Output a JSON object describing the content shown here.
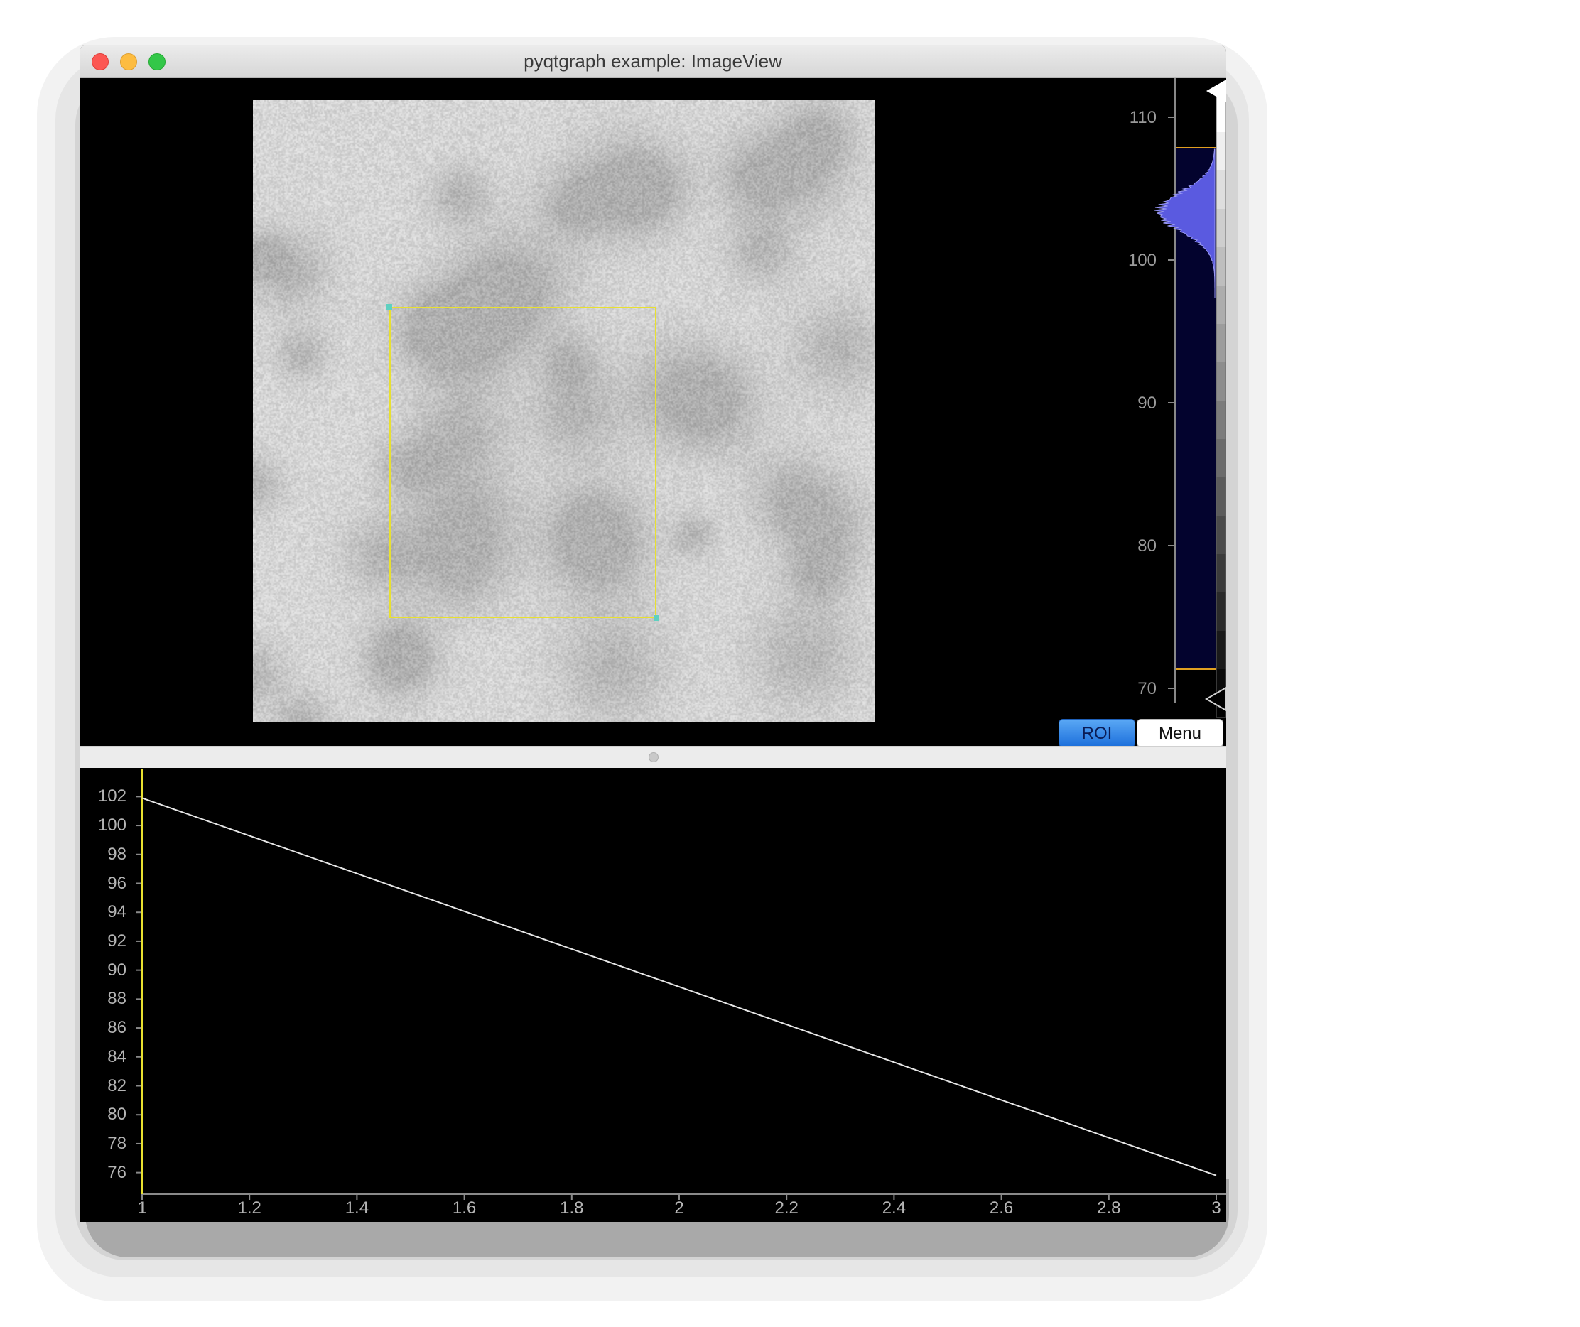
{
  "window": {
    "title": "pyqtgraph example: ImageView",
    "controls": [
      "close",
      "minimize",
      "zoom"
    ]
  },
  "image_view": {
    "image": "noisy-grayscale-image",
    "roi_color": "#e8e030"
  },
  "histogram": {
    "axis_ticks": [
      "110",
      "100",
      "90",
      "80",
      "70"
    ],
    "fill_color": "#5a5ae0",
    "background_color": "#03032e",
    "level_line_color": "#e0a020"
  },
  "buttons": {
    "roi": {
      "label": "ROI",
      "checked": true
    },
    "menu": {
      "label": "Menu"
    }
  },
  "roi_plot": {
    "y_ticks": [
      "102",
      "100",
      "98",
      "96",
      "94",
      "92",
      "90",
      "88",
      "86",
      "84",
      "82",
      "80",
      "78",
      "76"
    ],
    "x_ticks": [
      "1",
      "1.2",
      "1.4",
      "1.6",
      "1.8",
      "2",
      "2.2",
      "2.4",
      "2.6",
      "2.8",
      "3"
    ]
  },
  "chart_data": {
    "type": "line",
    "title": "",
    "xlabel": "",
    "ylabel": "",
    "x": [
      1,
      3
    ],
    "series": [
      {
        "values": [
          101.9,
          75.8
        ]
      }
    ],
    "xlim": [
      1,
      3
    ],
    "ylim": [
      75,
      103
    ],
    "grid": false,
    "time_marker": 1
  }
}
